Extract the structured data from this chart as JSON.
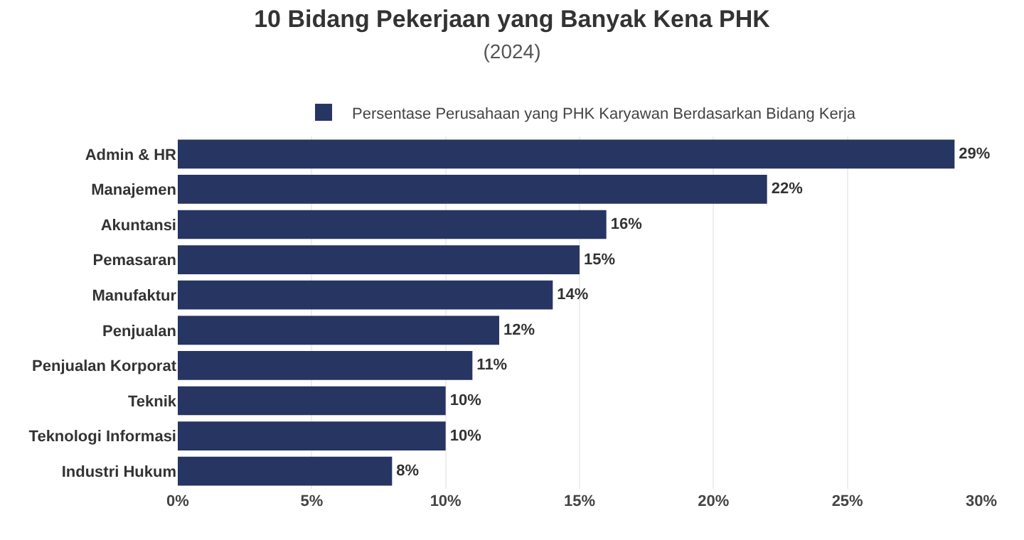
{
  "chart_data": {
    "type": "bar",
    "orientation": "horizontal",
    "title": "10 Bidang Pekerjaan yang Banyak Kena PHK",
    "subtitle": "(2024)",
    "categories": [
      "Admin & HR",
      "Manajemen",
      "Akuntansi",
      "Pemasaran",
      "Manufaktur",
      "Penjualan",
      "Penjualan Korporat",
      "Teknik",
      "Teknologi Informasi",
      "Industri Hukum"
    ],
    "series": [
      {
        "name": "Persentase Perusahaan yang PHK Karyawan Berdasarkan Bidang Kerja",
        "color": "#263562",
        "values": [
          29,
          22,
          16,
          15,
          14,
          12,
          11,
          10,
          10,
          8
        ],
        "value_labels": [
          "29%",
          "22%",
          "16%",
          "15%",
          "14%",
          "12%",
          "11%",
          "10%",
          "10%",
          "8%"
        ]
      }
    ],
    "xlim": [
      0,
      30
    ],
    "xticks": [
      {
        "value": 0,
        "label": "0%"
      },
      {
        "value": 5,
        "label": "5%"
      },
      {
        "value": 10,
        "label": "10%"
      },
      {
        "value": 15,
        "label": "15%"
      },
      {
        "value": 20,
        "label": "20%"
      },
      {
        "value": 25,
        "label": "25%"
      },
      {
        "value": 30,
        "label": "30%"
      }
    ],
    "grid": "x",
    "legend": "top"
  }
}
